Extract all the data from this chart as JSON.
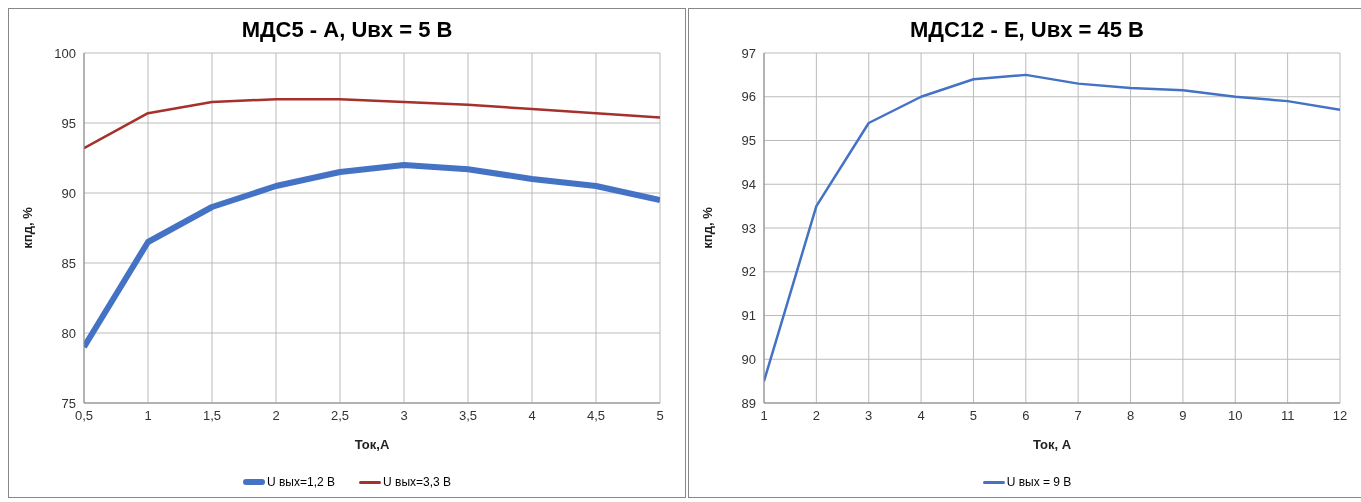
{
  "chart_data": [
    {
      "type": "line",
      "title": "МДС5 - А, Uвх = 5 В",
      "xlabel": "Ток,А",
      "ylabel": "кпд, %",
      "x": [
        0.5,
        1,
        1.5,
        2,
        2.5,
        3,
        3.5,
        4,
        4.5,
        5
      ],
      "series": [
        {
          "name": "U вых=1,2 В",
          "color": "#4472c4",
          "values": [
            79,
            86.5,
            89,
            90.5,
            91.5,
            92,
            91.7,
            91,
            90.5,
            89.5
          ]
        },
        {
          "name": "U вых=3,3 В",
          "color": "#a5302c",
          "values": [
            93.2,
            95.7,
            96.5,
            96.7,
            96.7,
            96.5,
            96.3,
            96,
            95.7,
            95.4
          ]
        }
      ],
      "xlim": [
        0.5,
        5
      ],
      "xticks": [
        {
          "value": 0.5,
          "label": "0,5"
        },
        1,
        {
          "value": 1.5,
          "label": "1,5"
        },
        2,
        {
          "value": 2.5,
          "label": "2,5"
        },
        3,
        {
          "value": 3.5,
          "label": "3,5"
        },
        4,
        {
          "value": 4.5,
          "label": "4,5"
        },
        5
      ],
      "ylim": [
        75,
        100
      ],
      "yticks": [
        75,
        80,
        85,
        90,
        95,
        100
      ],
      "grid": true,
      "legend": "bottom",
      "marker": "none",
      "line_style": "solid"
    },
    {
      "type": "line",
      "title": "МДС12 - Е, Uвх = 45 В",
      "xlabel": "Ток, А",
      "ylabel": "кпд, %",
      "x": [
        1,
        2,
        3,
        4,
        5,
        6,
        7,
        8,
        9,
        10,
        11,
        12
      ],
      "series": [
        {
          "name": "U вых = 9 В",
          "color": "#4472c4",
          "values": [
            89.5,
            93.5,
            95.4,
            96,
            96.4,
            96.5,
            96.3,
            96.2,
            96.15,
            96,
            95.9,
            95.7
          ]
        }
      ],
      "xlim": [
        1,
        12
      ],
      "xticks": [
        1,
        2,
        3,
        4,
        5,
        6,
        7,
        8,
        9,
        10,
        11,
        12
      ],
      "ylim": [
        89,
        97
      ],
      "yticks": [
        89,
        90,
        91,
        92,
        93,
        94,
        95,
        96,
        97
      ],
      "grid": true,
      "legend": "bottom",
      "marker": "none",
      "line_style": "solid"
    }
  ]
}
